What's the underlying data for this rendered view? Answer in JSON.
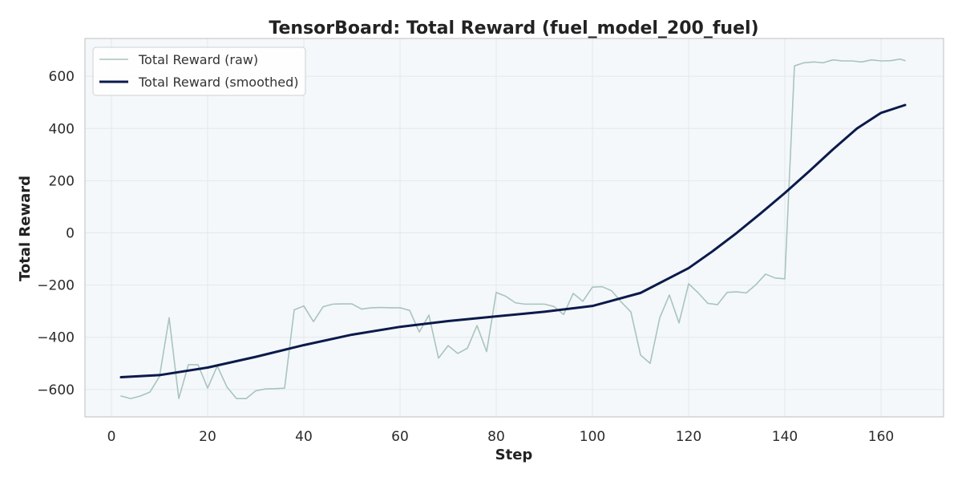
{
  "chart_data": {
    "type": "line",
    "title": "TensorBoard: Total Reward (fuel_model_200_fuel)",
    "xlabel": "Step",
    "ylabel": "Total Reward",
    "xlim": [
      -5.5,
      173
    ],
    "ylim": [
      -705,
      745
    ],
    "xticks": [
      0,
      20,
      40,
      60,
      80,
      100,
      120,
      140,
      160
    ],
    "yticks": [
      -600,
      -400,
      -200,
      0,
      200,
      400,
      600
    ],
    "xtick_labels": [
      "0",
      "20",
      "40",
      "60",
      "80",
      "100",
      "120",
      "140",
      "160"
    ],
    "ytick_labels": [
      "−600",
      "−400",
      "−200",
      "0",
      "200",
      "400",
      "600"
    ],
    "grid": true,
    "legend_position": "top-left",
    "colors": {
      "raw": "#a9c4bc",
      "smoothed": "#0b1a4a",
      "plot_background": "#f4f8fb",
      "grid": "#e3e8ec",
      "axes": "#c9c9c9"
    },
    "series": [
      {
        "name": "Total Reward (raw)",
        "x": [
          2,
          4,
          6,
          8,
          10,
          12,
          14,
          16,
          18,
          20,
          22,
          24,
          26,
          28,
          30,
          32,
          34,
          36,
          38,
          40,
          42,
          44,
          46,
          48,
          50,
          52,
          54,
          56,
          58,
          60,
          62,
          64,
          66,
          68,
          70,
          72,
          74,
          76,
          78,
          80,
          82,
          84,
          86,
          88,
          90,
          92,
          94,
          96,
          98,
          100,
          102,
          104,
          106,
          108,
          110,
          112,
          114,
          116,
          118,
          120,
          122,
          124,
          126,
          128,
          130,
          132,
          134,
          136,
          138,
          140,
          142,
          144,
          146,
          148,
          150,
          152,
          154,
          156,
          158,
          160,
          162,
          164,
          165
        ],
        "y": [
          -625,
          -635,
          -625,
          -610,
          -550,
          -325,
          -635,
          -505,
          -505,
          -595,
          -510,
          -590,
          -635,
          -635,
          -605,
          -598,
          -597,
          -595,
          -295,
          -280,
          -340,
          -283,
          -273,
          -272,
          -272,
          -292,
          -287,
          -286,
          -287,
          -287,
          -297,
          -380,
          -315,
          -480,
          -432,
          -462,
          -442,
          -355,
          -455,
          -228,
          -243,
          -268,
          -273,
          -273,
          -273,
          -282,
          -313,
          -232,
          -262,
          -208,
          -206,
          -222,
          -265,
          -303,
          -468,
          -500,
          -325,
          -238,
          -345,
          -195,
          -230,
          -270,
          -275,
          -228,
          -226,
          -230,
          -198,
          -158,
          -173,
          -176,
          640,
          652,
          655,
          652,
          663,
          659,
          659,
          655,
          663,
          659,
          660,
          666,
          660
        ]
      },
      {
        "name": "Total Reward (smoothed)",
        "x": [
          2,
          10,
          20,
          30,
          40,
          50,
          60,
          70,
          80,
          90,
          100,
          110,
          120,
          125,
          130,
          135,
          140,
          145,
          150,
          155,
          160,
          165
        ],
        "y": [
          -553,
          -545,
          -516,
          -475,
          -430,
          -390,
          -360,
          -338,
          -320,
          -302,
          -280,
          -230,
          -135,
          -70,
          0,
          75,
          153,
          235,
          320,
          400,
          460,
          490
        ]
      }
    ]
  }
}
